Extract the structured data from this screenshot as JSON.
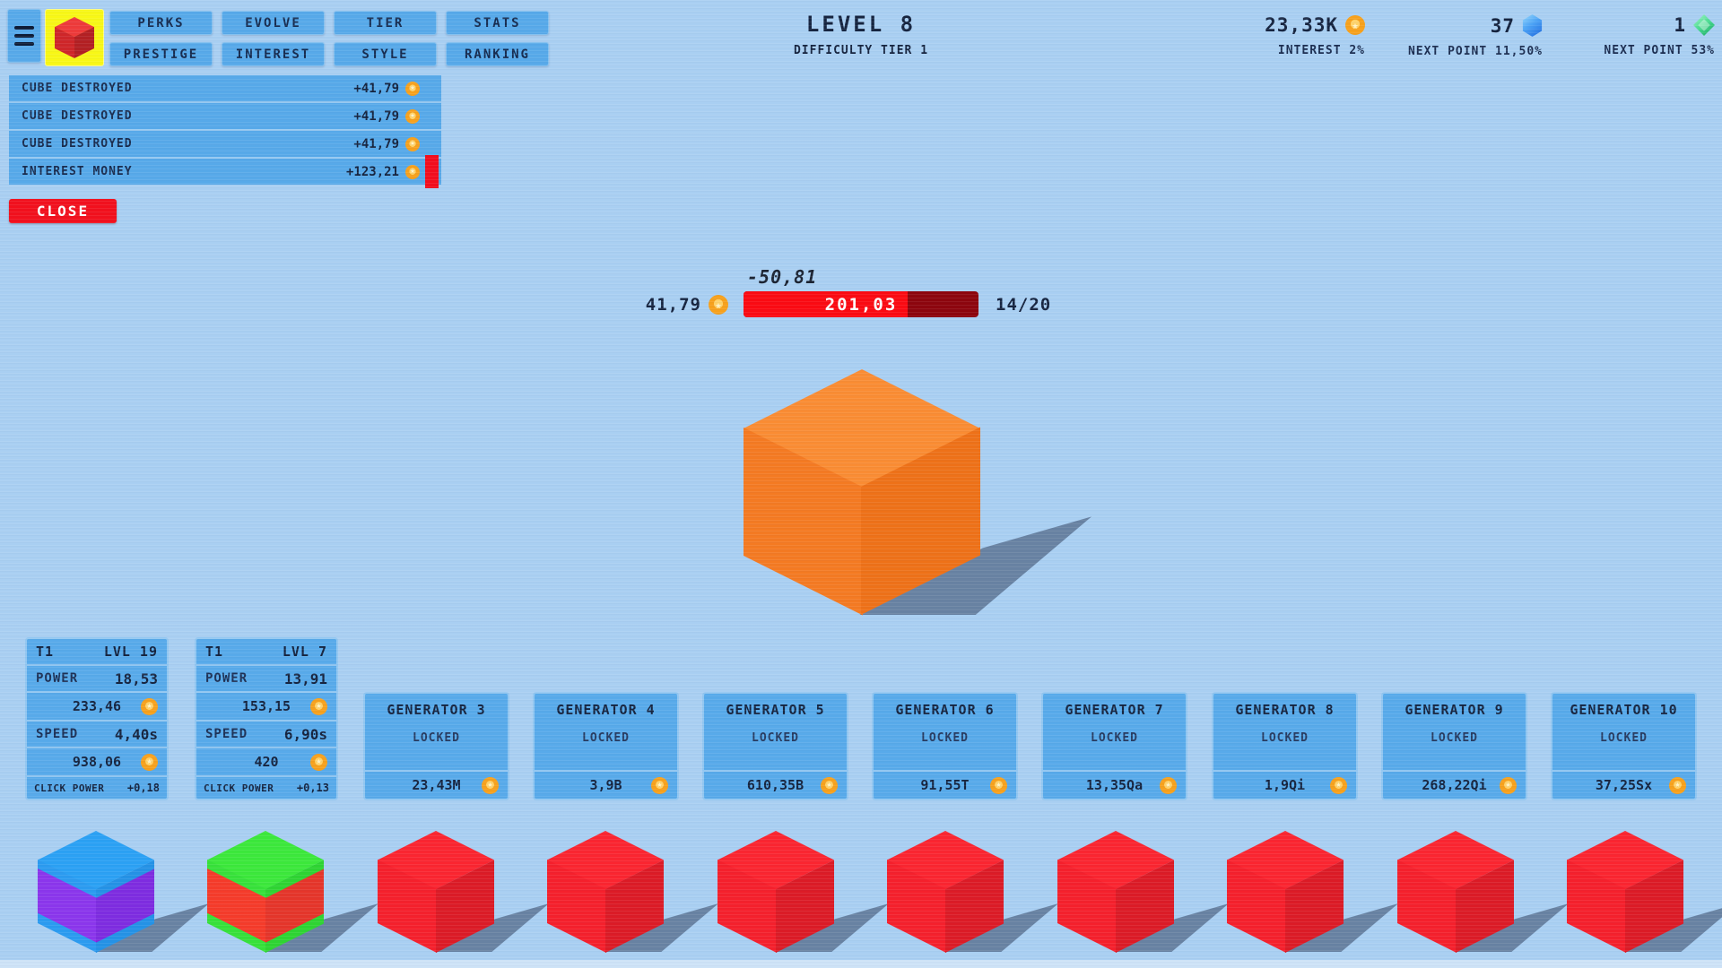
{
  "top_menu": {
    "row1": [
      "PERKS",
      "EVOLVE",
      "TIER",
      "STATS"
    ],
    "row2": [
      "PRESTIGE",
      "INTEREST",
      "STYLE",
      "RANKING"
    ]
  },
  "header": {
    "level": "LEVEL 8",
    "difficulty": "DIFFICULTY TIER 1"
  },
  "currencies": [
    {
      "value": "23,33K",
      "icon": "coin",
      "subtitle": "INTEREST 2%"
    },
    {
      "value": "37",
      "icon": "blue-gem",
      "subtitle": "NEXT POINT 11,50%"
    },
    {
      "value": "1",
      "icon": "green-gem",
      "subtitle": "NEXT POINT 53%"
    }
  ],
  "notifications": {
    "items": [
      {
        "label": "CUBE DESTROYED",
        "value": "+41,79"
      },
      {
        "label": "CUBE DESTROYED",
        "value": "+41,79"
      },
      {
        "label": "CUBE DESTROYED",
        "value": "+41,79"
      },
      {
        "label": "INTEREST MONEY",
        "value": "+123,21"
      }
    ],
    "close_label": "CLOSE"
  },
  "cube_panel": {
    "damage_preview": "-50,81",
    "reward": "41,79",
    "hp": "201,03",
    "hp_percent": 70,
    "progress": "14/20"
  },
  "generators": {
    "unlocked": [
      {
        "tier": "T1",
        "level": "LVL 19",
        "power_label": "POWER",
        "power": "18,53",
        "power_cost": "233,46",
        "speed_label": "SPEED",
        "speed": "4,40s",
        "speed_cost": "938,06",
        "click_label": "CLICK POWER",
        "click_bonus": "+0,18"
      },
      {
        "tier": "T1",
        "level": "LVL 7",
        "power_label": "POWER",
        "power": "13,91",
        "power_cost": "153,15",
        "speed_label": "SPEED",
        "speed": "6,90s",
        "speed_cost": "420",
        "click_label": "CLICK POWER",
        "click_bonus": "+0,13"
      }
    ],
    "locked": [
      {
        "name": "GENERATOR 3",
        "status": "LOCKED",
        "price": "23,43M"
      },
      {
        "name": "GENERATOR 4",
        "status": "LOCKED",
        "price": "3,9B"
      },
      {
        "name": "GENERATOR 5",
        "status": "LOCKED",
        "price": "610,35B"
      },
      {
        "name": "GENERATOR 6",
        "status": "LOCKED",
        "price": "91,55T"
      },
      {
        "name": "GENERATOR 7",
        "status": "LOCKED",
        "price": "13,35Qa"
      },
      {
        "name": "GENERATOR 8",
        "status": "LOCKED",
        "price": "1,9Qi"
      },
      {
        "name": "GENERATOR 9",
        "status": "LOCKED",
        "price": "268,22Qi"
      },
      {
        "name": "GENERATOR 10",
        "status": "LOCKED",
        "price": "37,25Sx"
      }
    ]
  },
  "big_cube": {
    "top": "#fa8c33",
    "left": "#f47a22",
    "right": "#ee7118"
  },
  "logo_cube": {
    "top": "#ee3a3a",
    "left": "#cf2629",
    "right": "#b32023"
  },
  "bottom_cubes": [
    {
      "name": "generator-cube-1",
      "top": "#2ba1f4",
      "left_top": "#2b9bf0",
      "left_mid": "#8b36ec",
      "right_top": "#2492e6",
      "right_mid": "#7e2ce0"
    },
    {
      "name": "generator-cube-2",
      "top": "#3ce83b",
      "left_top": "#37e13a",
      "left_mid": "#f53b2a",
      "right_top": "#2ed432",
      "right_mid": "#e5352a"
    },
    {
      "name": "generator-cube-3",
      "top": "#fb2530",
      "left_top": "#f5202c",
      "left_mid": "#f5202c",
      "right_top": "#dc1b26",
      "right_mid": "#dc1b26"
    },
    {
      "name": "generator-cube-4",
      "top": "#fb2530",
      "left_top": "#f5202c",
      "left_mid": "#f5202c",
      "right_top": "#dc1b26",
      "right_mid": "#dc1b26"
    },
    {
      "name": "generator-cube-5",
      "top": "#fb2530",
      "left_top": "#f5202c",
      "left_mid": "#f5202c",
      "right_top": "#dc1b26",
      "right_mid": "#dc1b26"
    },
    {
      "name": "generator-cube-6",
      "top": "#fb2530",
      "left_top": "#f5202c",
      "left_mid": "#f5202c",
      "right_top": "#dc1b26",
      "right_mid": "#dc1b26"
    },
    {
      "name": "generator-cube-7",
      "top": "#fb2530",
      "left_top": "#f5202c",
      "left_mid": "#f5202c",
      "right_top": "#dc1b26",
      "right_mid": "#dc1b26"
    },
    {
      "name": "generator-cube-8",
      "top": "#fb2530",
      "left_top": "#f5202c",
      "left_mid": "#f5202c",
      "right_top": "#dc1b26",
      "right_mid": "#dc1b26"
    },
    {
      "name": "generator-cube-9",
      "top": "#fb2530",
      "left_top": "#f5202c",
      "left_mid": "#f5202c",
      "right_top": "#dc1b26",
      "right_mid": "#dc1b26"
    },
    {
      "name": "generator-cube-10",
      "top": "#fb2530",
      "left_top": "#f5202c",
      "left_mid": "#f5202c",
      "right_top": "#dc1b26",
      "right_mid": "#dc1b26"
    }
  ],
  "colors": {
    "background": "#a9cff2",
    "panel_blue": "#57a9e9",
    "accent_red": "#f2101d",
    "bar_fill": "#fb0a12",
    "bar_back": "#8d050d",
    "coin": "#f7a11c",
    "text_dark": "#16243f"
  }
}
